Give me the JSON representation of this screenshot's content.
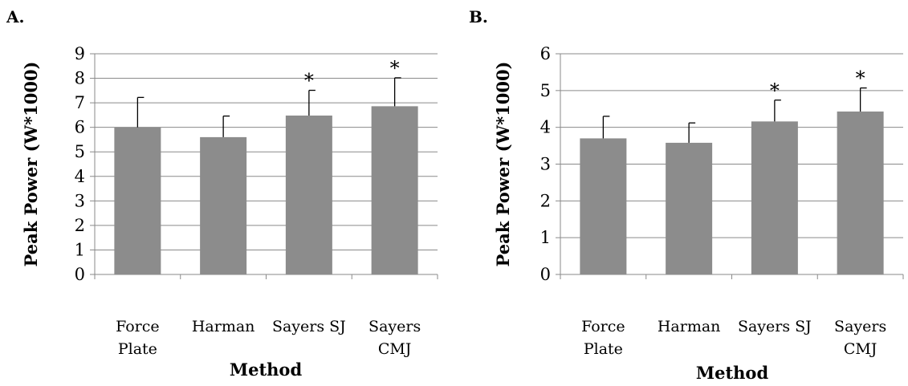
{
  "chart_data": [
    {
      "panel_label": "A.",
      "type": "bar",
      "categories": [
        [
          "Force",
          "Plate"
        ],
        [
          "Harman"
        ],
        [
          "Sayers SJ"
        ],
        [
          "Sayers",
          "CMJ"
        ]
      ],
      "values": [
        6.0,
        5.6,
        6.48,
        6.86
      ],
      "error_bars": [
        1.22,
        0.86,
        1.03,
        1.16
      ],
      "significance": [
        "",
        "",
        "*",
        "*"
      ],
      "xlabel": "Method",
      "ylabel": "Peak Power (W*1000)",
      "ylim": [
        0,
        9
      ],
      "yticks": [
        "0",
        "1",
        "2",
        "3",
        "4",
        "5",
        "6",
        "7",
        "8",
        "9"
      ],
      "grid": true,
      "bar_color": "#8c8c8c"
    },
    {
      "panel_label": "B.",
      "type": "bar",
      "categories": [
        [
          "Force",
          "Plate"
        ],
        [
          "Harman"
        ],
        [
          "Sayers SJ"
        ],
        [
          "Sayers",
          "CMJ"
        ]
      ],
      "values": [
        3.7,
        3.58,
        4.16,
        4.43
      ],
      "error_bars": [
        0.6,
        0.54,
        0.58,
        0.64
      ],
      "significance": [
        "",
        "",
        "*",
        "*"
      ],
      "xlabel": "Method",
      "ylabel": "Peak Power  (W*1000)",
      "ylim": [
        0,
        6
      ],
      "yticks": [
        "0",
        "1",
        "2",
        "3",
        "4",
        "5",
        "6"
      ],
      "grid": true,
      "bar_color": "#8c8c8c"
    }
  ]
}
